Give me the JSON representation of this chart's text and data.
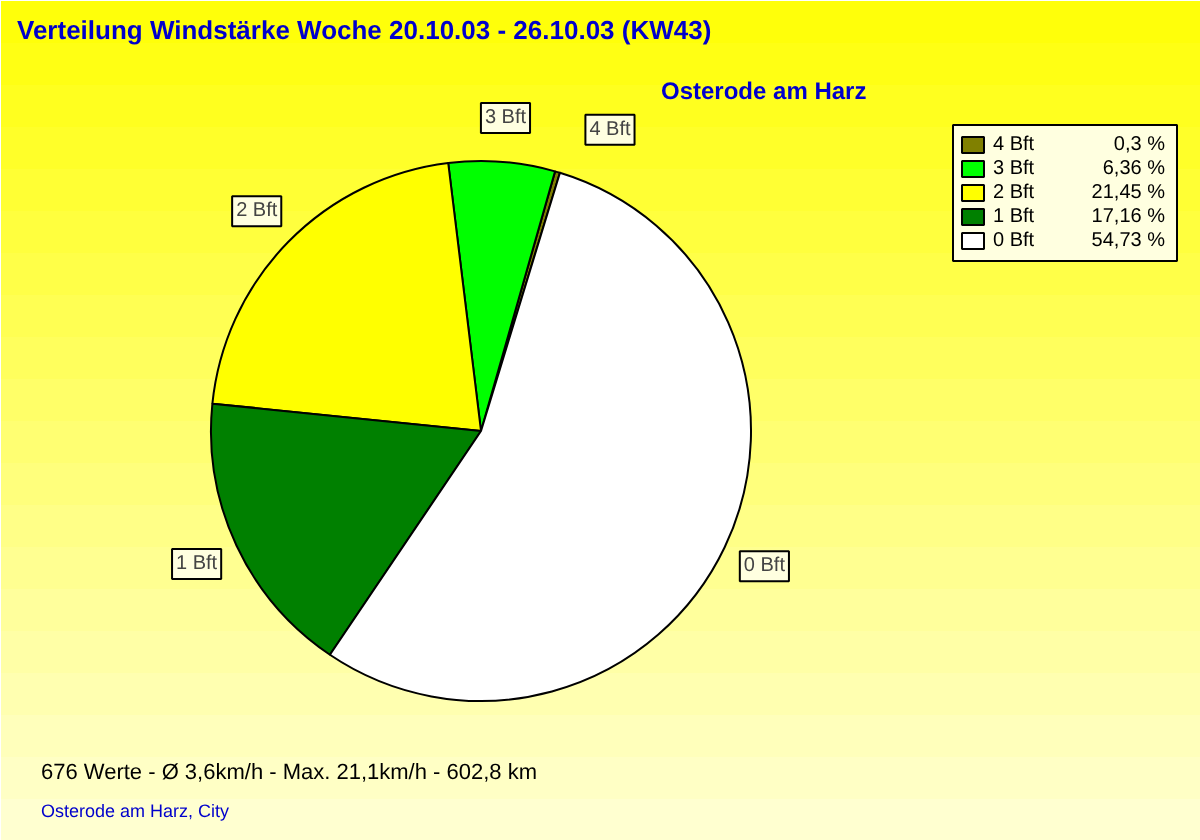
{
  "chart_data": {
    "type": "pie",
    "title": "Verteilung Windstärke  Woche 20.10.03 - 26.10.03 (KW43)",
    "subtitle": "Osterode am Harz",
    "categories": [
      "4 Bft",
      "3 Bft",
      "2 Bft",
      "1 Bft",
      "0 Bft"
    ],
    "values": [
      0.3,
      6.36,
      21.45,
      17.16,
      54.73
    ],
    "value_labels": [
      "0,3 %",
      "6,36 %",
      "21,45 %",
      "17,16 %",
      "54,73 %"
    ],
    "colors": [
      "#808000",
      "#00ff00",
      "#ffff00",
      "#008000",
      "#ffffff"
    ],
    "legend": "top right",
    "annotations": [
      "676 Werte   -   Ø 3,6km/h  -  Max. 21,1km/h   -   602,8 km",
      "Osterode am Harz, City"
    ]
  }
}
